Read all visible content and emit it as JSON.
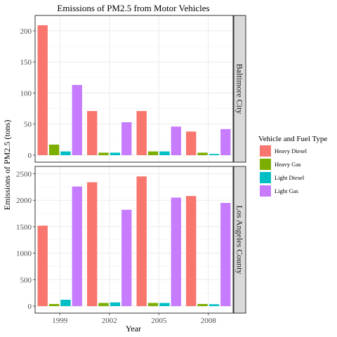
{
  "chart_data": {
    "type": "bar",
    "title": "Emissions of PM2.5 from Motor Vehicles",
    "xlabel": "Year",
    "ylabel": "Emissions of PM2.5 (tons)",
    "categories": [
      "1999",
      "2002",
      "2005",
      "2008"
    ],
    "legend": {
      "title": "Vehicle and Fuel Type",
      "placement": "right",
      "entries": [
        "Heavy Diesel",
        "Heavy Gas",
        "Light Diesel",
        "Light Gas"
      ]
    },
    "series_colors": [
      "#f8766d",
      "#7cae00",
      "#00bfc4",
      "#c77cff"
    ],
    "grid": true,
    "panels": [
      {
        "facet_label": "Baltimore City",
        "ylim": [
          0,
          218
        ],
        "yticks": [
          0,
          50,
          100,
          150,
          200
        ],
        "series": [
          {
            "name": "Heavy Diesel",
            "values": [
              209,
              71,
              71,
              38
            ]
          },
          {
            "name": "Heavy Gas",
            "values": [
              17,
              4,
              6,
              4
            ]
          },
          {
            "name": "Light Diesel",
            "values": [
              6,
              4,
              6,
              2
            ]
          },
          {
            "name": "Light Gas",
            "values": [
              113,
              53,
              46,
              42
            ]
          }
        ]
      },
      {
        "facet_label": "Los Angeles County",
        "ylim": [
          0,
          2560
        ],
        "yticks": [
          0,
          500,
          1000,
          1500,
          2000,
          2500
        ],
        "series": [
          {
            "name": "Heavy Diesel",
            "values": [
              1520,
              2340,
              2450,
              2080
            ]
          },
          {
            "name": "Heavy Gas",
            "values": [
              40,
              60,
              60,
              40
            ]
          },
          {
            "name": "Light Diesel",
            "values": [
              120,
              70,
              60,
              35
            ]
          },
          {
            "name": "Light Gas",
            "values": [
              2260,
              1820,
              2050,
              1950
            ]
          }
        ]
      }
    ]
  }
}
